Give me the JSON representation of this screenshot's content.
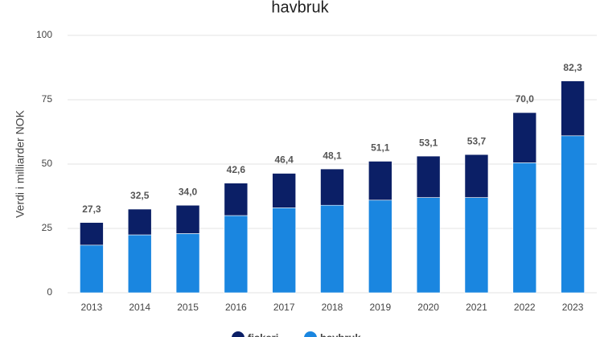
{
  "chart_data": {
    "type": "stacked-bar",
    "title": "havbruk",
    "y_label": "Verdi i milliarder NOK",
    "categories": [
      "2013",
      "2014",
      "2015",
      "2016",
      "2017",
      "2018",
      "2019",
      "2020",
      "2021",
      "2022",
      "2023"
    ],
    "series": [
      {
        "name": "fiskeri",
        "color": "#0b1f66",
        "values": [
          8.8,
          10.0,
          11.0,
          12.6,
          13.4,
          14.1,
          15.1,
          16.1,
          16.7,
          19.5,
          21.3
        ]
      },
      {
        "name": "havbruk",
        "color": "#1a86e0",
        "values": [
          18.5,
          22.5,
          23.0,
          30.0,
          33.0,
          34.0,
          36.0,
          37.0,
          37.0,
          50.5,
          61.0
        ]
      }
    ],
    "totals": [
      27.3,
      32.5,
      34.0,
      42.6,
      46.4,
      48.1,
      51.1,
      53.1,
      53.7,
      70.0,
      82.3
    ],
    "total_labels": [
      "27,3",
      "32,5",
      "34,0",
      "42,6",
      "46,4",
      "48,1",
      "51,1",
      "53,1",
      "53,7",
      "70,0",
      "82,3"
    ],
    "ylim": [
      0,
      100
    ],
    "yticks": [
      0,
      25,
      50,
      75,
      100
    ],
    "grid": true
  }
}
